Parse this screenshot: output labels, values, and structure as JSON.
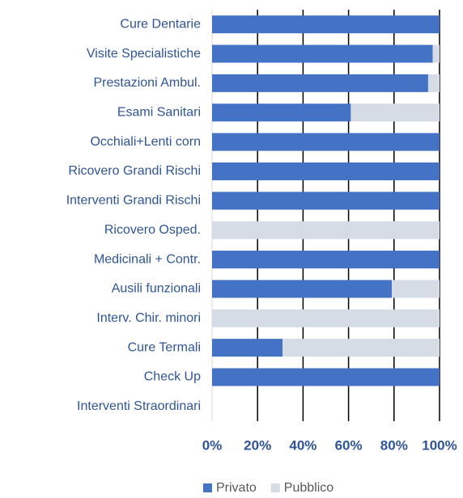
{
  "chart_data": {
    "type": "stacked-bar-horizontal",
    "categories": [
      "Cure Dentarie",
      "Visite Specialistiche",
      "Prestazioni Ambul.",
      "Esami Sanitari",
      "Occhiali+Lenti corn",
      "Ricovero Grandi Rischi",
      "Interventi Grandi Rischi",
      "Ricovero Osped.",
      "Medicinali + Contr.",
      "Ausili funzionali",
      "Interv. Chir. minori",
      "Cure Termali",
      "Check Up",
      "Interventi Straordinari"
    ],
    "series": [
      {
        "name": "Privato",
        "color": "#4472c4",
        "values": [
          100,
          97,
          95,
          61,
          100,
          100,
          100,
          0,
          100,
          79,
          0,
          31,
          100,
          0
        ]
      },
      {
        "name": "Pubblico",
        "color": "#d6dce5",
        "values": [
          0,
          3,
          5,
          39,
          0,
          0,
          0,
          100,
          0,
          21,
          100,
          69,
          0,
          0
        ]
      }
    ],
    "xlim": [
      0,
      100
    ],
    "xticks": [
      {
        "value": 0,
        "label": "0%"
      },
      {
        "value": 20,
        "label": "20%"
      },
      {
        "value": 40,
        "label": "40%"
      },
      {
        "value": 60,
        "label": "60%"
      },
      {
        "value": 80,
        "label": "80%"
      },
      {
        "value": 100,
        "label": "100%"
      }
    ],
    "grid": true,
    "legend": "bottom"
  }
}
